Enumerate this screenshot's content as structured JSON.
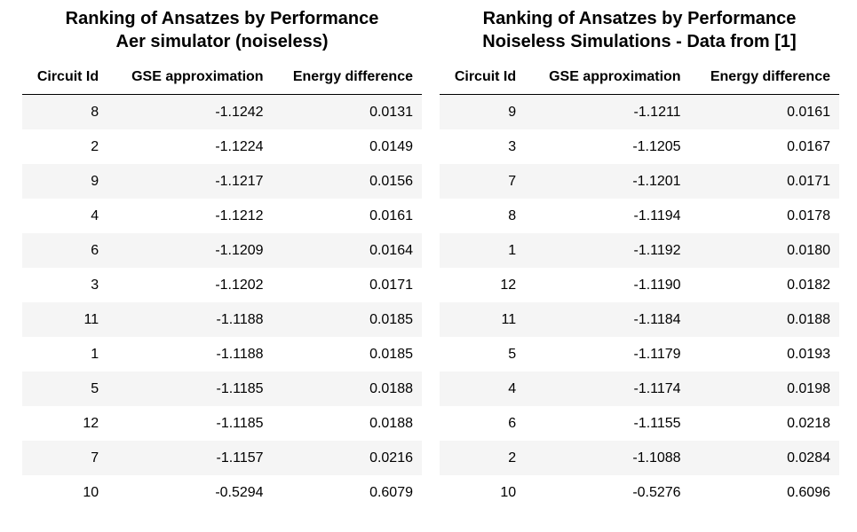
{
  "tables": [
    {
      "title_line1": "Ranking of Ansatzes by Performance",
      "title_line2": "Aer simulator (noiseless)",
      "headers": [
        "Circuit Id",
        "GSE approximation",
        "Energy difference"
      ],
      "rows": [
        [
          "8",
          "-1.1242",
          "0.0131"
        ],
        [
          "2",
          "-1.1224",
          "0.0149"
        ],
        [
          "9",
          "-1.1217",
          "0.0156"
        ],
        [
          "4",
          "-1.1212",
          "0.0161"
        ],
        [
          "6",
          "-1.1209",
          "0.0164"
        ],
        [
          "3",
          "-1.1202",
          "0.0171"
        ],
        [
          "11",
          "-1.1188",
          "0.0185"
        ],
        [
          "1",
          "-1.1188",
          "0.0185"
        ],
        [
          "5",
          "-1.1185",
          "0.0188"
        ],
        [
          "12",
          "-1.1185",
          "0.0188"
        ],
        [
          "7",
          "-1.1157",
          "0.0216"
        ],
        [
          "10",
          "-0.5294",
          "0.6079"
        ]
      ]
    },
    {
      "title_line1": "Ranking of Ansatzes by Performance",
      "title_line2": "Noiseless Simulations - Data from [1]",
      "headers": [
        "Circuit Id",
        "GSE approximation",
        "Energy difference"
      ],
      "rows": [
        [
          "9",
          "-1.1211",
          "0.0161"
        ],
        [
          "3",
          "-1.1205",
          "0.0167"
        ],
        [
          "7",
          "-1.1201",
          "0.0171"
        ],
        [
          "8",
          "-1.1194",
          "0.0178"
        ],
        [
          "1",
          "-1.1192",
          "0.0180"
        ],
        [
          "12",
          "-1.1190",
          "0.0182"
        ],
        [
          "11",
          "-1.1184",
          "0.0188"
        ],
        [
          "5",
          "-1.1179",
          "0.0193"
        ],
        [
          "4",
          "-1.1174",
          "0.0198"
        ],
        [
          "6",
          "-1.1155",
          "0.0218"
        ],
        [
          "2",
          "-1.1088",
          "0.0284"
        ],
        [
          "10",
          "-0.5276",
          "0.6096"
        ]
      ]
    }
  ]
}
